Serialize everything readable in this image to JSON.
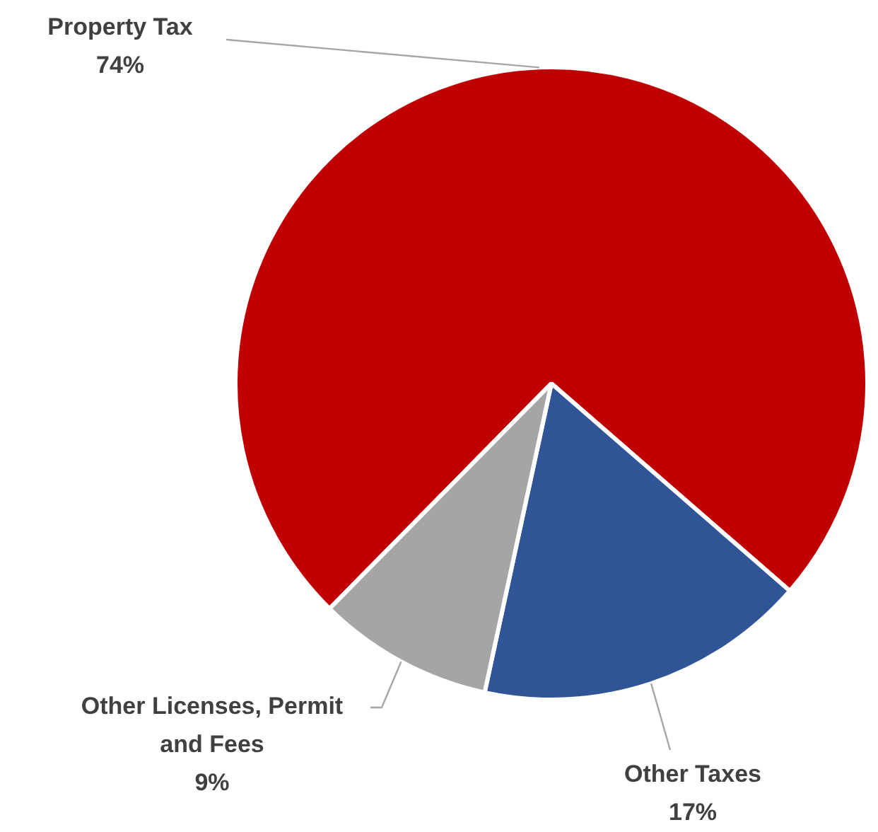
{
  "chart_data": {
    "type": "pie",
    "categories": [
      "Property Tax",
      "Other Taxes",
      "Other Licenses, Permit and Fees"
    ],
    "values": [
      74,
      17,
      9
    ],
    "colors": [
      "#c00000",
      "#2f5597",
      "#a5a5a5"
    ],
    "value_labels": [
      "74%",
      "17%",
      "9%"
    ],
    "legend": false
  }
}
